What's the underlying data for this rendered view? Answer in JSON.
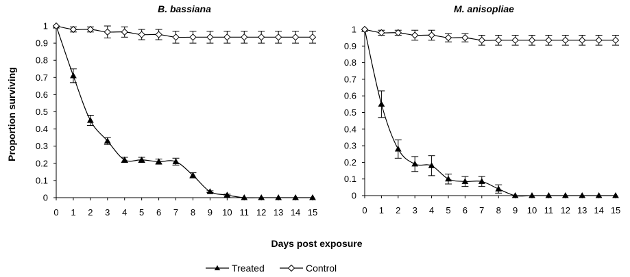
{
  "chart_data": {
    "type": "line",
    "ylabel": "Proportion surviving",
    "xlabel": "Days post exposure",
    "legend_position": "bottom-center",
    "legend": [
      {
        "name": "Treated",
        "marker": "filled-triangle"
      },
      {
        "name": "Control",
        "marker": "open-diamond"
      }
    ],
    "panels": [
      {
        "title": "B. bassiana",
        "x": [
          0,
          1,
          2,
          3,
          4,
          5,
          6,
          7,
          8,
          9,
          10,
          11,
          12,
          13,
          14,
          15
        ],
        "ylim": [
          0,
          1
        ],
        "xlim": [
          0,
          15
        ],
        "yticks": [
          "0",
          "0.1",
          "0.2",
          "0.3",
          "0.4",
          "0.5",
          "0.6",
          "0.7",
          "0.8",
          "0.9",
          "1"
        ],
        "xticks": [
          "0",
          "1",
          "2",
          "3",
          "4",
          "5",
          "6",
          "7",
          "8",
          "9",
          "10",
          "11",
          "12",
          "13",
          "14",
          "15"
        ],
        "series": [
          {
            "name": "Treated",
            "values": [
              1.0,
              0.71,
              0.45,
              0.33,
              0.22,
              0.22,
              0.21,
              0.21,
              0.13,
              0.035,
              0.015,
              0,
              0,
              0,
              0,
              0
            ],
            "errors": [
              0,
              0.04,
              0.03,
              0.02,
              0.015,
              0.015,
              0.015,
              0.02,
              0.015,
              0.005,
              0.005,
              0,
              0,
              0,
              0,
              0
            ]
          },
          {
            "name": "Control",
            "values": [
              1.0,
              0.98,
              0.98,
              0.965,
              0.965,
              0.95,
              0.95,
              0.935,
              0.935,
              0.935,
              0.935,
              0.935,
              0.935,
              0.935,
              0.935,
              0.935
            ],
            "errors": [
              0,
              0.015,
              0.015,
              0.035,
              0.03,
              0.03,
              0.03,
              0.035,
              0.035,
              0.035,
              0.035,
              0.035,
              0.035,
              0.035,
              0.035,
              0.035
            ]
          }
        ]
      },
      {
        "title": "M. anisopliae",
        "x": [
          0,
          1,
          2,
          3,
          4,
          5,
          6,
          7,
          8,
          9,
          10,
          11,
          12,
          13,
          14,
          15
        ],
        "ylim": [
          0,
          1
        ],
        "xlim": [
          0,
          15
        ],
        "yticks": [
          "0",
          "0.1",
          "0.2",
          "0.3",
          "0.4",
          "0.5",
          "0.6",
          "0.7",
          "0.8",
          "0.9",
          "1"
        ],
        "xticks": [
          "0",
          "1",
          "2",
          "3",
          "4",
          "5",
          "6",
          "7",
          "8",
          "9",
          "10",
          "11",
          "12",
          "13",
          "14",
          "15"
        ],
        "series": [
          {
            "name": "Treated",
            "values": [
              1.0,
              0.55,
              0.28,
              0.19,
              0.18,
              0.1,
              0.085,
              0.085,
              0.04,
              0,
              0,
              0,
              0,
              0,
              0,
              0
            ],
            "errors": [
              0,
              0.08,
              0.055,
              0.045,
              0.06,
              0.03,
              0.03,
              0.03,
              0.025,
              0,
              0,
              0,
              0,
              0,
              0,
              0
            ]
          },
          {
            "name": "Control",
            "values": [
              1.0,
              0.98,
              0.98,
              0.965,
              0.965,
              0.95,
              0.95,
              0.935,
              0.935,
              0.935,
              0.935,
              0.935,
              0.935,
              0.935,
              0.935,
              0.935
            ],
            "errors": [
              0,
              0.015,
              0.015,
              0.03,
              0.03,
              0.025,
              0.025,
              0.03,
              0.03,
              0.03,
              0.03,
              0.03,
              0.03,
              0.03,
              0.03,
              0.03
            ]
          }
        ]
      }
    ]
  }
}
